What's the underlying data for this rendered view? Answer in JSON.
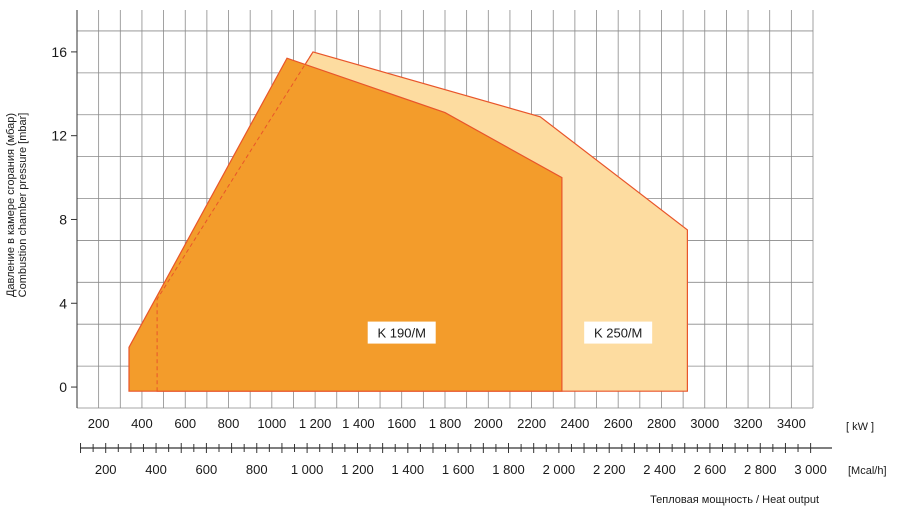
{
  "chart_data": {
    "type": "area",
    "ylabel_line1": "Давление в камере сгорания (мбар)",
    "ylabel_line2": "Combustion chamber pressure [mbar]",
    "xlabel": "Тепловая мощность / Heat output",
    "kw_unit": "[ kW ]",
    "mcal_unit": "[Mcal/h]",
    "y_ticks": [
      0,
      4,
      8,
      12,
      16
    ],
    "y_tick_labels": [
      "0",
      "4",
      "8",
      "12",
      "16"
    ],
    "ylim": [
      -1,
      18
    ],
    "kw_range": [
      100,
      3500
    ],
    "kw_ticks": [
      200,
      400,
      600,
      800,
      1000,
      1200,
      1400,
      1600,
      1800,
      2000,
      2200,
      2400,
      2600,
      2800,
      3000,
      3200,
      3400
    ],
    "kw_tick_labels": [
      "200",
      "400",
      "600",
      "800",
      "1000",
      "1 200",
      "1 400",
      "1600",
      "1 800",
      "2000",
      "2200",
      "2400",
      "2600",
      "2800",
      "3000",
      "3200",
      "3400"
    ],
    "mcal_ticks": [
      200,
      400,
      600,
      800,
      1000,
      1200,
      1400,
      1600,
      1800,
      2000,
      2200,
      2400,
      2600,
      2800,
      3000
    ],
    "mcal_tick_labels": [
      "200",
      "400",
      "600",
      "800",
      "1 000",
      "1 200",
      "1 400",
      "1 600",
      "1 800",
      "2 000",
      "2 200",
      "2 400",
      "2 600",
      "2 800",
      "3 000"
    ],
    "grid": true,
    "series": [
      {
        "name": "K 250/M",
        "color": "#fddca0",
        "stroke": "#e8552a",
        "points": [
          [
            470,
            -0.2
          ],
          [
            470,
            4.2
          ],
          [
            1190,
            16
          ],
          [
            2240,
            12.9
          ],
          [
            2920,
            7.5
          ],
          [
            2920,
            -0.2
          ]
        ]
      },
      {
        "name": "K 190/M",
        "color": "#f39c2b",
        "stroke": "#e8552a",
        "points": [
          [
            340,
            -0.2
          ],
          [
            340,
            1.9
          ],
          [
            1070,
            15.7
          ],
          [
            1800,
            13.1
          ],
          [
            2340,
            10
          ],
          [
            2340,
            -0.2
          ]
        ]
      }
    ],
    "labels": [
      {
        "text": "K 190/M",
        "x": 1600,
        "y": 2.6
      },
      {
        "text": "K 250/M",
        "x": 2600,
        "y": 2.6
      }
    ]
  }
}
